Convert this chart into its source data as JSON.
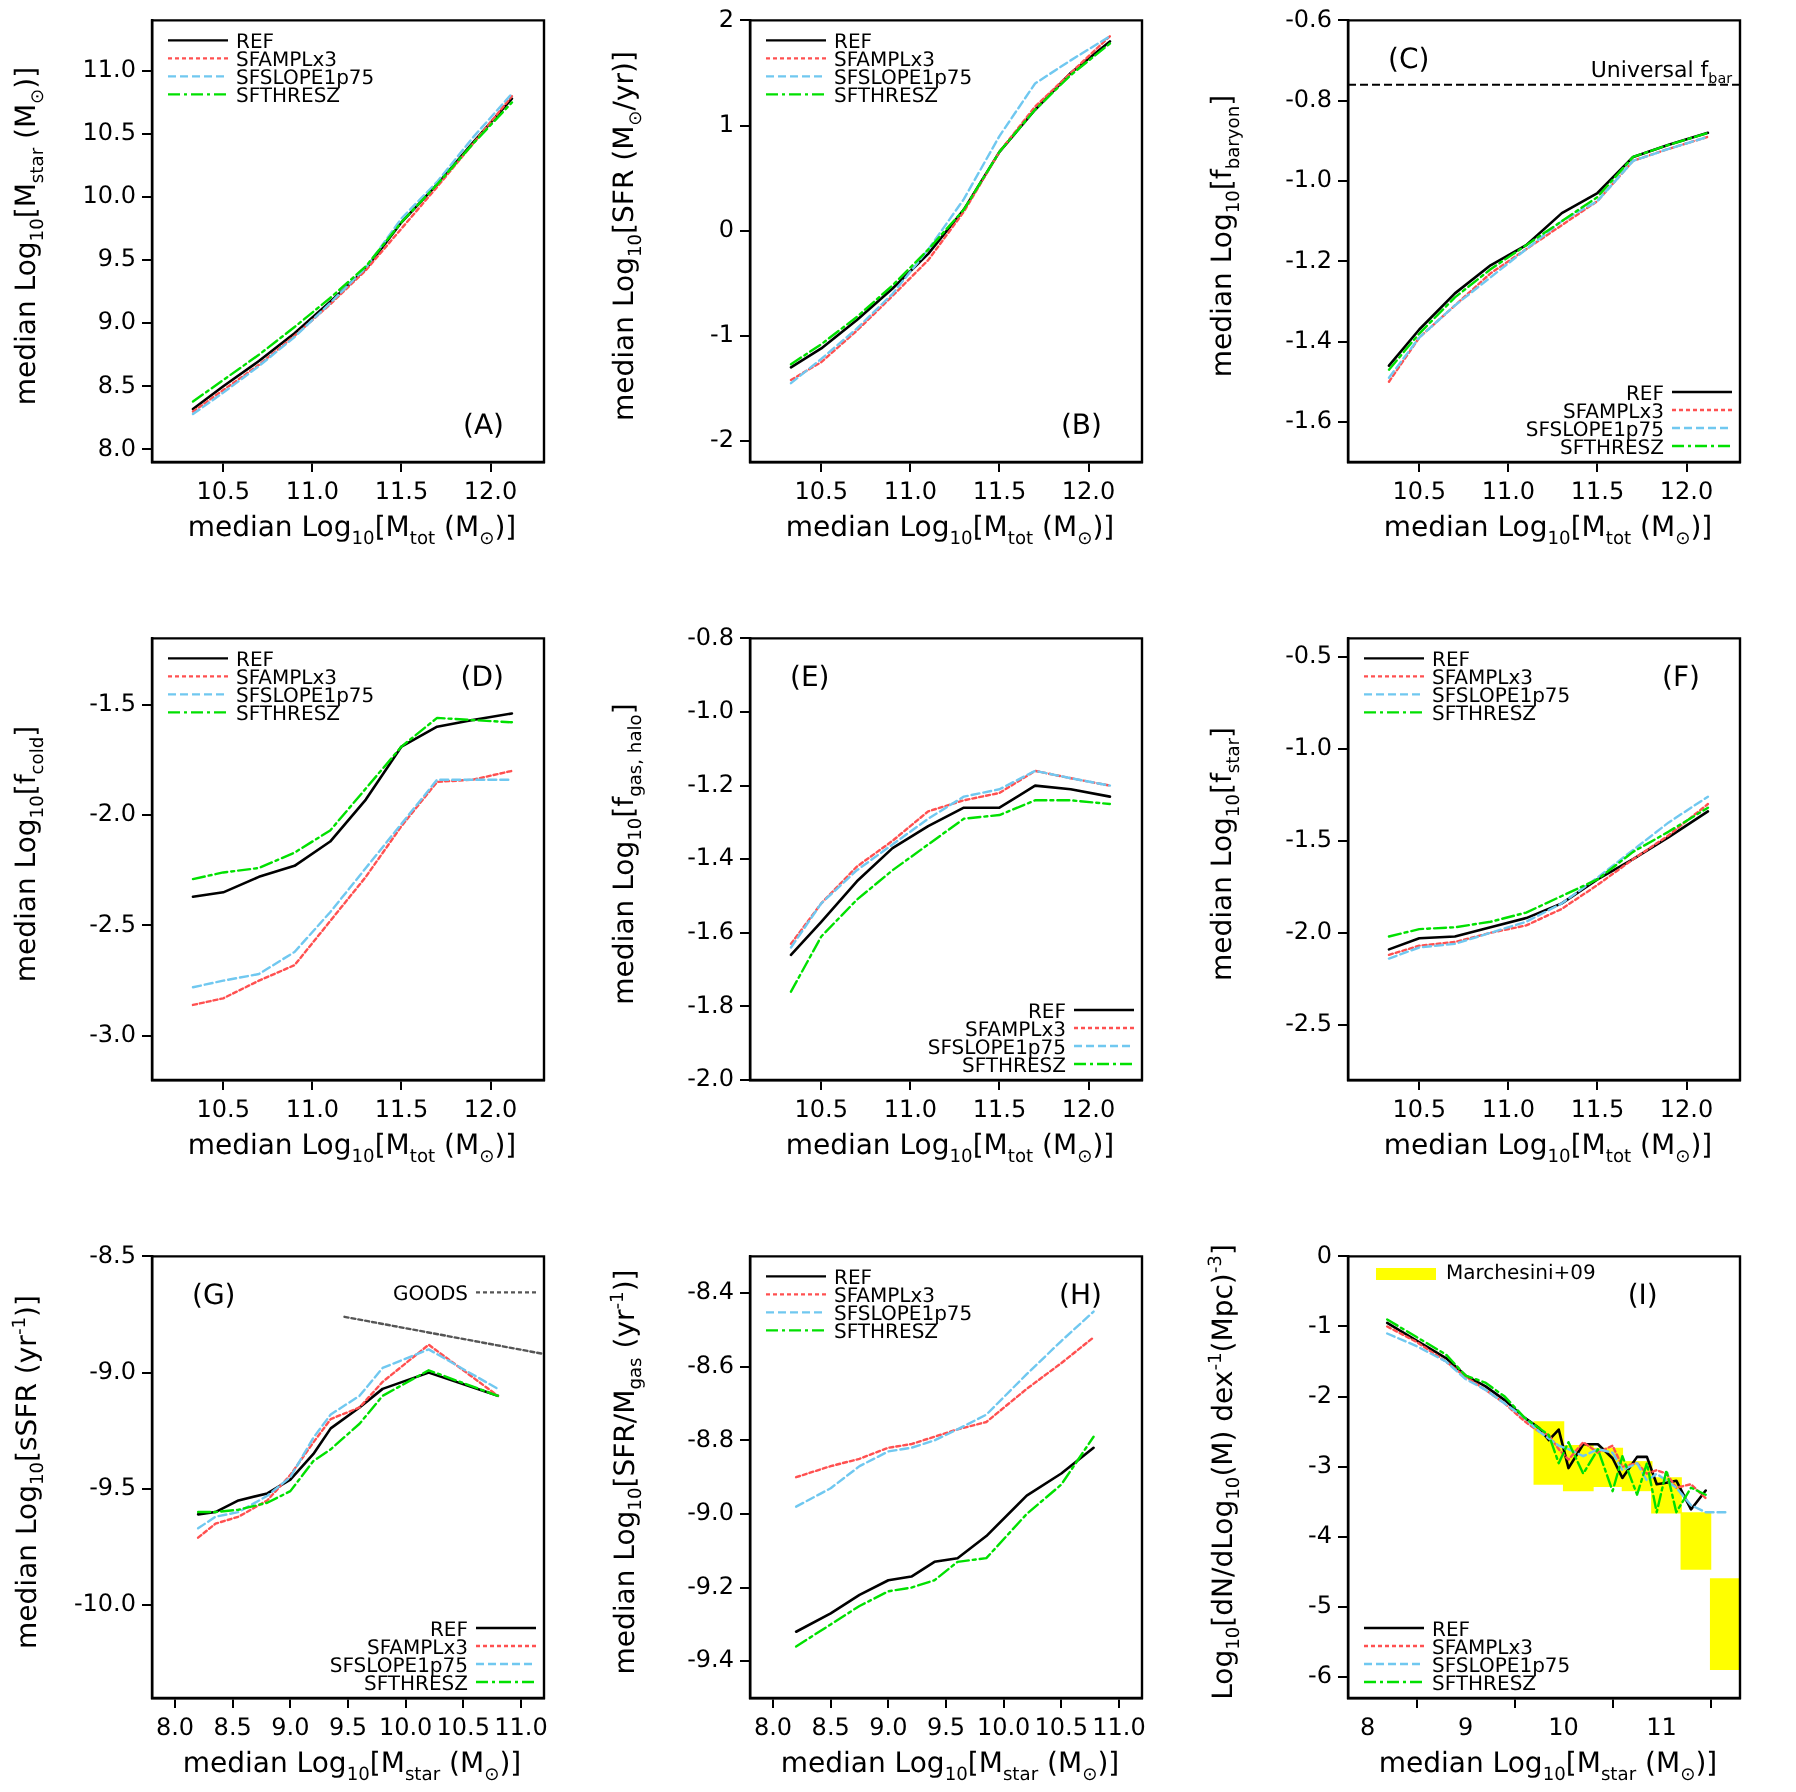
{
  "chart_data": [
    {
      "type": "line",
      "xlabel": "median Log$_{10}$[M$_{tot}$ (M$_{⊙}$)]",
      "ylabel": "median Log$_{10}$[M$_{star}$ (M$_{⊙}$)]",
      "x": [
        10.33,
        10.5,
        10.7,
        10.9,
        11.1,
        11.3,
        11.5,
        11.7,
        11.9,
        12.12
      ],
      "xlim": [
        10.1,
        12.3
      ],
      "xticks": [
        10.5,
        {
          "value": 11,
          "label": "11.0"
        },
        11.5,
        {
          "value": 12,
          "label": "12.0"
        }
      ],
      "ylim": [
        7.9,
        11.4
      ],
      "yticks": [
        {
          "value": 8,
          "label": "8.0"
        },
        8.5,
        {
          "value": 9,
          "label": "9.0"
        },
        9.5,
        {
          "value": 10,
          "label": "10.0"
        },
        10.5,
        {
          "value": 11,
          "label": "11.0"
        }
      ],
      "legend": "top left",
      "marker": "none",
      "annotations": [
        "(A)"
      ],
      "series": [
        {
          "name": "REF",
          "color": "#000000",
          "line_style": "solid",
          "values": [
            8.32,
            8.5,
            8.7,
            8.92,
            9.17,
            9.43,
            9.8,
            10.1,
            10.43,
            10.78
          ]
        },
        {
          "name": "SFAMPLx3",
          "color": "#ff5050",
          "line_style": "dotted",
          "values": [
            8.3,
            8.47,
            8.67,
            8.9,
            9.15,
            9.42,
            9.75,
            10.08,
            10.42,
            10.8
          ]
        },
        {
          "name": "SFSLOPE1p75",
          "color": "#70c8f0",
          "line_style": "dashed",
          "values": [
            8.28,
            8.45,
            8.66,
            8.89,
            9.16,
            9.44,
            9.83,
            10.12,
            10.47,
            10.82
          ]
        },
        {
          "name": "SFTHRESZ",
          "color": "#00e000",
          "line_style": "dashdot",
          "values": [
            8.38,
            8.55,
            8.75,
            8.97,
            9.2,
            9.45,
            9.8,
            10.1,
            10.42,
            10.75
          ]
        }
      ]
    },
    {
      "type": "line",
      "xlabel": "median Log$_{10}$[M$_{tot}$ (M$_{⊙}$)]",
      "ylabel": "median Log$_{10}$[SFR (M$_{⊙}$/yr)]",
      "x": [
        10.33,
        10.5,
        10.7,
        10.9,
        11.1,
        11.3,
        11.5,
        11.7,
        11.9,
        12.12
      ],
      "xlim": [
        10.1,
        12.3
      ],
      "xticks": [
        10.5,
        {
          "value": 11,
          "label": "11.0"
        },
        11.5,
        {
          "value": 12,
          "label": "12.0"
        }
      ],
      "ylim": [
        -2.2,
        2
      ],
      "yticks": [
        -2,
        -1,
        0,
        1,
        2
      ],
      "legend": "top left",
      "marker": "none",
      "annotations": [
        "(B)"
      ],
      "series": [
        {
          "name": "REF",
          "color": "#000000",
          "line_style": "solid",
          "values": [
            -1.3,
            -1.12,
            -0.85,
            -0.55,
            -0.22,
            0.2,
            0.75,
            1.15,
            1.5,
            1.8
          ]
        },
        {
          "name": "SFAMPLx3",
          "color": "#ff5050",
          "line_style": "dotted",
          "values": [
            -1.42,
            -1.25,
            -0.95,
            -0.62,
            -0.28,
            0.18,
            0.75,
            1.18,
            1.5,
            1.85
          ]
        },
        {
          "name": "SFSLOPE1p75",
          "color": "#70c8f0",
          "line_style": "dashed",
          "values": [
            -1.45,
            -1.22,
            -0.93,
            -0.6,
            -0.18,
            0.3,
            0.9,
            1.4,
            1.62,
            1.85
          ]
        },
        {
          "name": "SFTHRESZ",
          "color": "#00e000",
          "line_style": "dashdot",
          "values": [
            -1.27,
            -1.08,
            -0.82,
            -0.52,
            -0.18,
            0.2,
            0.75,
            1.15,
            1.48,
            1.78
          ]
        }
      ]
    },
    {
      "type": "line",
      "xlabel": "median Log$_{10}$[M$_{tot}$ (M$_{⊙}$)]",
      "ylabel": "median Log$_{10}$[f$_{baryon}$]",
      "x": [
        10.33,
        10.5,
        10.7,
        10.9,
        11.1,
        11.3,
        11.5,
        11.7,
        11.9,
        12.12
      ],
      "xlim": [
        10.1,
        12.3
      ],
      "xticks": [
        10.5,
        {
          "value": 11,
          "label": "11.0"
        },
        11.5,
        {
          "value": 12,
          "label": "12.0"
        }
      ],
      "ylim": [
        -1.7,
        -0.6
      ],
      "yticks": [
        -1.6,
        -1.4,
        -1.2,
        {
          "value": -1,
          "label": "-1.0"
        },
        -0.8,
        -0.6
      ],
      "legend": "bottom right",
      "marker": "none",
      "annotations": [
        "(C)"
      ],
      "ref_lines": [
        {
          "axis": "y",
          "value": -0.76,
          "label": "Universal f$_{bar}$",
          "color": "#000000",
          "line_style": "dashed"
        }
      ],
      "series": [
        {
          "name": "REF",
          "color": "#000000",
          "line_style": "solid",
          "values": [
            -1.46,
            -1.37,
            -1.28,
            -1.21,
            -1.16,
            -1.08,
            -1.03,
            -0.94,
            -0.91,
            -0.88
          ]
        },
        {
          "name": "SFAMPLx3",
          "color": "#ff5050",
          "line_style": "dotted",
          "values": [
            -1.5,
            -1.39,
            -1.31,
            -1.23,
            -1.17,
            -1.11,
            -1.05,
            -0.95,
            -0.92,
            -0.89
          ]
        },
        {
          "name": "SFSLOPE1p75",
          "color": "#70c8f0",
          "line_style": "dashed",
          "values": [
            -1.49,
            -1.39,
            -1.31,
            -1.24,
            -1.17,
            -1.1,
            -1.05,
            -0.95,
            -0.92,
            -0.89
          ]
        },
        {
          "name": "SFTHRESZ",
          "color": "#00e000",
          "line_style": "dashdot",
          "values": [
            -1.47,
            -1.38,
            -1.29,
            -1.22,
            -1.16,
            -1.1,
            -1.04,
            -0.94,
            -0.91,
            -0.88
          ]
        }
      ]
    },
    {
      "type": "line",
      "xlabel": "median Log$_{10}$[M$_{tot}$ (M$_{⊙}$)]",
      "ylabel": "median Log$_{10}$[f$_{cold}$]",
      "x": [
        10.33,
        10.5,
        10.7,
        10.9,
        11.1,
        11.3,
        11.5,
        11.7,
        11.9,
        12.12
      ],
      "xlim": [
        10.1,
        12.3
      ],
      "xticks": [
        10.5,
        {
          "value": 11,
          "label": "11.0"
        },
        11.5,
        {
          "value": 12,
          "label": "12.0"
        }
      ],
      "ylim": [
        -3.2,
        -1.2
      ],
      "yticks": [
        {
          "value": -3,
          "label": "-3.0"
        },
        -2.5,
        {
          "value": -2,
          "label": "-2.0"
        },
        -1.5
      ],
      "legend": "top left",
      "marker": "none",
      "annotations": [
        "(D)"
      ],
      "series": [
        {
          "name": "REF",
          "color": "#000000",
          "line_style": "solid",
          "values": [
            -2.37,
            -2.35,
            -2.28,
            -2.23,
            -2.12,
            -1.93,
            -1.69,
            -1.6,
            -1.57,
            -1.54
          ]
        },
        {
          "name": "SFAMPLx3",
          "color": "#ff5050",
          "line_style": "dotted",
          "values": [
            -2.86,
            -2.83,
            -2.75,
            -2.68,
            -2.48,
            -2.28,
            -2.05,
            -1.85,
            -1.84,
            -1.8
          ]
        },
        {
          "name": "SFSLOPE1p75",
          "color": "#70c8f0",
          "line_style": "dashed",
          "values": [
            -2.78,
            -2.75,
            -2.72,
            -2.62,
            -2.44,
            -2.24,
            -2.04,
            -1.84,
            -1.84,
            -1.84
          ]
        },
        {
          "name": "SFTHRESZ",
          "color": "#00e000",
          "line_style": "dashdot",
          "values": [
            -2.29,
            -2.26,
            -2.24,
            -2.17,
            -2.07,
            -1.88,
            -1.69,
            -1.56,
            -1.57,
            -1.58
          ]
        }
      ]
    },
    {
      "type": "line",
      "xlabel": "median Log$_{10}$[M$_{tot}$ (M$_{⊙}$)]",
      "ylabel": "median Log$_{10}$[f$_{gas, halo}$]",
      "x": [
        10.33,
        10.5,
        10.7,
        10.9,
        11.1,
        11.3,
        11.5,
        11.7,
        11.9,
        12.12
      ],
      "xlim": [
        10.1,
        12.3
      ],
      "xticks": [
        10.5,
        {
          "value": 11,
          "label": "11.0"
        },
        11.5,
        {
          "value": 12,
          "label": "12.0"
        }
      ],
      "ylim": [
        -2,
        -0.8
      ],
      "yticks": [
        {
          "value": -2,
          "label": "-2.0"
        },
        -1.8,
        -1.6,
        -1.4,
        -1.2,
        {
          "value": -1,
          "label": "-1.0"
        },
        -0.8
      ],
      "legend": "bottom right",
      "marker": "none",
      "annotations": [
        "(E)"
      ],
      "series": [
        {
          "name": "REF",
          "color": "#000000",
          "line_style": "solid",
          "values": [
            -1.66,
            -1.57,
            -1.46,
            -1.37,
            -1.31,
            -1.26,
            -1.26,
            -1.2,
            -1.21,
            -1.23
          ]
        },
        {
          "name": "SFAMPLx3",
          "color": "#ff5050",
          "line_style": "dotted",
          "values": [
            -1.63,
            -1.52,
            -1.42,
            -1.35,
            -1.27,
            -1.24,
            -1.22,
            -1.16,
            -1.18,
            -1.2
          ]
        },
        {
          "name": "SFSLOPE1p75",
          "color": "#70c8f0",
          "line_style": "dashed",
          "values": [
            -1.64,
            -1.52,
            -1.43,
            -1.36,
            -1.29,
            -1.23,
            -1.21,
            -1.16,
            -1.18,
            -1.2
          ]
        },
        {
          "name": "SFTHRESZ",
          "color": "#00e000",
          "line_style": "dashdot",
          "values": [
            -1.76,
            -1.61,
            -1.51,
            -1.43,
            -1.36,
            -1.29,
            -1.28,
            -1.24,
            -1.24,
            -1.25
          ]
        }
      ]
    },
    {
      "type": "line",
      "xlabel": "median Log$_{10}$[M$_{tot}$ (M$_{⊙}$)]",
      "ylabel": "median Log$_{10}$[f$_{star}$]",
      "x": [
        10.33,
        10.5,
        10.7,
        10.9,
        11.1,
        11.3,
        11.5,
        11.7,
        11.9,
        12.12
      ],
      "xlim": [
        10.1,
        12.3
      ],
      "xticks": [
        10.5,
        {
          "value": 11,
          "label": "11.0"
        },
        11.5,
        {
          "value": 12,
          "label": "12.0"
        }
      ],
      "ylim": [
        -2.8,
        -0.4
      ],
      "yticks": [
        -2.5,
        {
          "value": -2,
          "label": "-2.0"
        },
        -1.5,
        {
          "value": -1,
          "label": "-1.0"
        },
        -0.5
      ],
      "legend": "top left",
      "marker": "none",
      "annotations": [
        "(F)"
      ],
      "series": [
        {
          "name": "REF",
          "color": "#000000",
          "line_style": "solid",
          "values": [
            -2.09,
            -2.03,
            -2.02,
            -1.97,
            -1.92,
            -1.84,
            -1.71,
            -1.6,
            -1.48,
            -1.34
          ]
        },
        {
          "name": "SFAMPLx3",
          "color": "#ff5050",
          "line_style": "dotted",
          "values": [
            -2.12,
            -2.07,
            -2.05,
            -2,
            -1.96,
            -1.87,
            -1.74,
            -1.6,
            -1.47,
            -1.3
          ]
        },
        {
          "name": "SFSLOPE1p75",
          "color": "#70c8f0",
          "line_style": "dashed",
          "values": [
            -2.14,
            -2.08,
            -2.06,
            -2,
            -1.94,
            -1.84,
            -1.7,
            -1.55,
            -1.4,
            -1.26
          ]
        },
        {
          "name": "SFTHRESZ",
          "color": "#00e000",
          "line_style": "dashdot",
          "values": [
            -2.02,
            -1.98,
            -1.97,
            -1.94,
            -1.89,
            -1.8,
            -1.71,
            -1.56,
            -1.45,
            -1.32
          ]
        }
      ]
    },
    {
      "type": "line",
      "xlabel": "median Log$_{10}$[M$_{star}$ (M$_{⊙}$)]",
      "ylabel": "median Log$_{10}$[sSFR (yr$^{-1}$)]",
      "x": [
        8.2,
        8.35,
        8.55,
        8.8,
        9.0,
        9.2,
        9.35,
        9.6,
        9.8,
        10.2,
        10.8
      ],
      "xlim": [
        7.8,
        11.2
      ],
      "xticks": [
        {
          "value": 8,
          "label": "8.0"
        },
        8.5,
        {
          "value": 9,
          "label": "9.0"
        },
        9.5,
        {
          "value": 10,
          "label": "10.0"
        },
        10.5,
        {
          "value": 11,
          "label": "11.0"
        }
      ],
      "ylim": [
        -10.4,
        -8.5
      ],
      "yticks": [
        {
          "value": -10,
          "label": "-10.0"
        },
        -9.5,
        {
          "value": -9,
          "label": "-9.0"
        },
        -8.5
      ],
      "legend": "bottom right",
      "marker": "none",
      "annotations": [
        "(G)"
      ],
      "series": [
        {
          "name": "REF",
          "color": "#000000",
          "line_style": "solid",
          "values": [
            -9.61,
            -9.6,
            -9.55,
            -9.52,
            -9.46,
            -9.35,
            -9.24,
            -9.15,
            -9.07,
            -9.0,
            -9.1
          ]
        },
        {
          "name": "SFAMPLx3",
          "color": "#ff5050",
          "line_style": "dotted",
          "values": [
            -9.71,
            -9.65,
            -9.62,
            -9.55,
            -9.44,
            -9.3,
            -9.2,
            -9.15,
            -9.04,
            -8.88,
            -9.1
          ]
        },
        {
          "name": "SFSLOPE1p75",
          "color": "#70c8f0",
          "line_style": "dashed",
          "values": [
            -9.67,
            -9.62,
            -9.6,
            -9.53,
            -9.45,
            -9.28,
            -9.18,
            -9.1,
            -8.98,
            -8.9,
            -9.07
          ]
        },
        {
          "name": "SFTHRESZ",
          "color": "#00e000",
          "line_style": "dashdot",
          "values": [
            -9.6,
            -9.6,
            -9.59,
            -9.56,
            -9.51,
            -9.38,
            -9.33,
            -9.22,
            -9.1,
            -8.99,
            -9.1
          ]
        },
        {
          "name": "GOODS",
          "color": "#555555",
          "line_style": "dotted",
          "x": [
            9.47,
            11.2
          ],
          "values": [
            -8.76,
            -8.92
          ]
        }
      ]
    },
    {
      "type": "line",
      "xlabel": "median Log$_{10}$[M$_{star}$ (M$_{⊙}$)]",
      "ylabel": "median Log$_{10}$[SFR/M$_{gas}$ (yr$^{-1}$)]",
      "x": [
        8.2,
        8.5,
        8.75,
        9.0,
        9.2,
        9.4,
        9.6,
        9.85,
        10.2,
        10.5,
        10.78
      ],
      "xlim": [
        7.8,
        11.2
      ],
      "xticks": [
        {
          "value": 8,
          "label": "8.0"
        },
        8.5,
        {
          "value": 9,
          "label": "9.0"
        },
        9.5,
        {
          "value": 10,
          "label": "10.0"
        },
        10.5,
        {
          "value": 11,
          "label": "11.0"
        }
      ],
      "ylim": [
        -9.5,
        -8.3
      ],
      "yticks": [
        -9.4,
        -9.2,
        {
          "value": -9,
          "label": "-9.0"
        },
        -8.8,
        -8.6,
        -8.4
      ],
      "legend": "top left",
      "marker": "none",
      "annotations": [
        "(H)"
      ],
      "series": [
        {
          "name": "REF",
          "color": "#000000",
          "line_style": "solid",
          "values": [
            -9.32,
            -9.27,
            -9.22,
            -9.18,
            -9.17,
            -9.13,
            -9.12,
            -9.06,
            -8.95,
            -8.89,
            -8.82
          ]
        },
        {
          "name": "SFAMPLx3",
          "color": "#ff5050",
          "line_style": "dotted",
          "values": [
            -8.9,
            -8.87,
            -8.85,
            -8.82,
            -8.81,
            -8.79,
            -8.77,
            -8.75,
            -8.66,
            -8.59,
            -8.52
          ]
        },
        {
          "name": "SFSLOPE1p75",
          "color": "#70c8f0",
          "line_style": "dashed",
          "values": [
            -8.98,
            -8.93,
            -8.87,
            -8.83,
            -8.82,
            -8.8,
            -8.77,
            -8.73,
            -8.62,
            -8.53,
            -8.45
          ]
        },
        {
          "name": "SFTHRESZ",
          "color": "#00e000",
          "line_style": "dashdot",
          "values": [
            -9.36,
            -9.3,
            -9.25,
            -9.21,
            -9.2,
            -9.18,
            -9.13,
            -9.12,
            -9.0,
            -8.92,
            -8.79
          ]
        }
      ]
    },
    {
      "type": "line",
      "xlabel": "median Log$_{10}$[M$_{star}$ (M$_{⊙}$)]",
      "ylabel": "Log$_{10}$[dN/dLog$_{10}$(M)  dex$^{-1}$(Mpc)$^{-3}$]",
      "x": [
        8.2,
        8.5,
        8.8,
        9.0,
        9.2,
        9.4,
        9.6,
        9.75,
        9.85,
        9.95,
        10.05,
        10.2,
        10.35,
        10.5,
        10.6,
        10.75,
        10.85,
        10.95,
        11.05,
        11.15,
        11.3,
        11.45,
        11.65
      ],
      "xlim": [
        7.8,
        11.8
      ],
      "xticks": [
        8,
        9,
        10,
        11
      ],
      "ylim": [
        -6.3,
        0
      ],
      "yticks": [
        -6,
        -5,
        -4,
        -3,
        -2,
        -1,
        0
      ],
      "legend": "left",
      "marker": "none",
      "annotations": [
        "(I)"
      ],
      "series": [
        {
          "name": "Marchesini+09",
          "type": "bar",
          "color": "#ffff00",
          "x": [
            9.85,
            10.15,
            10.45,
            10.75,
            11.05,
            11.35,
            11.65
          ],
          "base": [
            -3.25,
            -3.34,
            -3.28,
            -3.34,
            -3.66,
            -4.46,
            -5.89
          ],
          "values": [
            0.89,
            0.64,
            0.54,
            0.41,
            0.5,
            0.8,
            1.29
          ]
        },
        {
          "name": "REF",
          "color": "#000000",
          "line_style": "solid",
          "values": [
            -0.95,
            -1.2,
            -1.45,
            -1.7,
            -1.85,
            -2.05,
            -2.3,
            -2.45,
            -2.62,
            -2.47,
            -3.02,
            -2.68,
            -2.68,
            -2.88,
            -3.16,
            -2.86,
            -2.86,
            -3.25,
            -3.23,
            -3.2,
            -3.61,
            -3.34,
            null
          ]
        },
        {
          "name": "SFAMPLx3",
          "color": "#ff5050",
          "line_style": "dotted",
          "values": [
            -1.0,
            -1.22,
            -1.5,
            -1.72,
            -1.9,
            -2.1,
            -2.35,
            -2.5,
            -2.55,
            -2.75,
            -2.9,
            -2.65,
            -2.8,
            -2.7,
            -3.0,
            -2.95,
            -3.1,
            -3.05,
            -3.1,
            -3.3,
            -3.25,
            -3.45,
            null
          ]
        },
        {
          "name": "SFSLOPE1p75",
          "color": "#70c8f0",
          "line_style": "dashed",
          "values": [
            -1.1,
            -1.28,
            -1.5,
            -1.75,
            -1.9,
            -2.1,
            -2.3,
            -2.5,
            -2.6,
            -2.7,
            -2.75,
            -2.85,
            -2.75,
            -2.8,
            -3.05,
            -2.95,
            -3.2,
            -3.1,
            -3.2,
            -3.3,
            -3.55,
            -3.65,
            -3.65
          ]
        },
        {
          "name": "SFTHRESZ",
          "color": "#00e000",
          "line_style": "dashdot",
          "values": [
            -0.9,
            -1.15,
            -1.4,
            -1.7,
            -1.8,
            -2.0,
            -2.3,
            -2.45,
            -2.55,
            -2.95,
            -2.65,
            -3.1,
            -2.75,
            -3.35,
            -2.85,
            -3.4,
            -2.95,
            -3.65,
            -3.05,
            -3.65,
            -3.3,
            -3.4,
            null
          ]
        }
      ]
    }
  ]
}
